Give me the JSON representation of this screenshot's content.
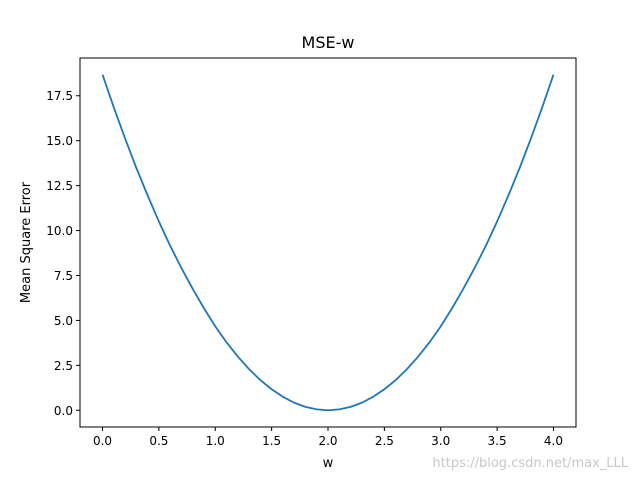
{
  "chart_data": {
    "type": "line",
    "title": "MSE-w",
    "xlabel": "w",
    "ylabel": "Mean Square Error",
    "xlim": [
      -0.2,
      4.2
    ],
    "ylim": [
      -0.93,
      19.6
    ],
    "xticks": [
      0.0,
      0.5,
      1.0,
      1.5,
      2.0,
      2.5,
      3.0,
      3.5,
      4.0
    ],
    "xtick_labels": [
      "0.0",
      "0.5",
      "1.0",
      "1.5",
      "2.0",
      "2.5",
      "3.0",
      "3.5",
      "4.0"
    ],
    "yticks": [
      0.0,
      2.5,
      5.0,
      7.5,
      10.0,
      12.5,
      15.0,
      17.5
    ],
    "ytick_labels": [
      "0.0",
      "2.5",
      "5.0",
      "7.5",
      "10.0",
      "12.5",
      "15.0",
      "17.5"
    ],
    "grid": false,
    "series": [
      {
        "color": "#1f77b4",
        "x": [
          0.0,
          0.1,
          0.2,
          0.3,
          0.4,
          0.5,
          0.6,
          0.7,
          0.8,
          0.9,
          1.0,
          1.1,
          1.2,
          1.3,
          1.4,
          1.5,
          1.6,
          1.7,
          1.8,
          1.9,
          2.0,
          2.1,
          2.2,
          2.3,
          2.4,
          2.5,
          2.6,
          2.7,
          2.8,
          2.9,
          3.0,
          3.1,
          3.2,
          3.3,
          3.4,
          3.5,
          3.6,
          3.7,
          3.8,
          3.9,
          4.0
        ],
        "y": [
          18.67,
          16.85,
          15.12,
          13.48,
          11.95,
          10.5,
          9.15,
          7.91,
          6.75,
          5.67,
          4.67,
          3.78,
          2.99,
          2.29,
          1.68,
          1.17,
          0.75,
          0.42,
          0.19,
          0.05,
          0.0,
          0.05,
          0.19,
          0.42,
          0.75,
          1.17,
          1.68,
          2.29,
          2.99,
          3.78,
          4.67,
          5.67,
          6.75,
          7.91,
          9.15,
          10.5,
          11.95,
          13.48,
          15.12,
          16.85,
          18.67
        ]
      }
    ]
  },
  "watermark": "https://blog.csdn.net/max_LLL"
}
